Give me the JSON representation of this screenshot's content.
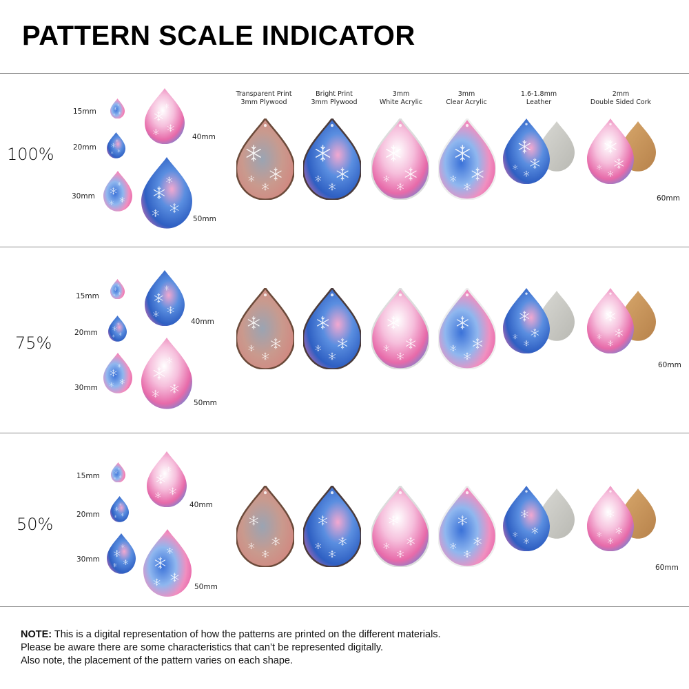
{
  "title": "PATTERN SCALE INDICATOR",
  "materials": [
    {
      "line1": "Transparent Print",
      "line2": "3mm Plywood"
    },
    {
      "line1": "Bright Print",
      "line2": "3mm Plywood"
    },
    {
      "line1": "3mm",
      "line2": "White Acrylic"
    },
    {
      "line1": "3mm",
      "line2": "Clear Acrylic"
    },
    {
      "line1": "1.6-1.8mm",
      "line2": "Leather"
    },
    {
      "line1": "2mm",
      "line2": "Double Sided Cork"
    }
  ],
  "sections": [
    {
      "scale": "100%",
      "size15": "15mm",
      "size20": "20mm",
      "size30": "30mm",
      "size40": "40mm",
      "size50": "50mm",
      "size60": "60mm"
    },
    {
      "scale": "75%",
      "size15": "15mm",
      "size20": "20mm",
      "size30": "30mm",
      "size40": "40mm",
      "size50": "50mm",
      "size60": "60mm"
    },
    {
      "scale": "50%",
      "size15": "15mm",
      "size20": "20mm",
      "size30": "30mm",
      "size40": "40mm",
      "size50": "50mm",
      "size60": "60mm"
    }
  ],
  "note": {
    "label": "NOTE:",
    "line1": " This is a digital representation of how the patterns are printed on the different materials.",
    "line2": "Please be aware there are some characteristics that can’t be represented digitally.",
    "line3": "Also note, the placement of the pattern varies on each shape."
  },
  "colors": {
    "pink": "#e86aa8",
    "blue": "#3a6fd0",
    "lightpink": "#f3b6d6",
    "leather": "#c9c9c4",
    "cork": "#c9955d",
    "wood": "#b07a5a"
  }
}
